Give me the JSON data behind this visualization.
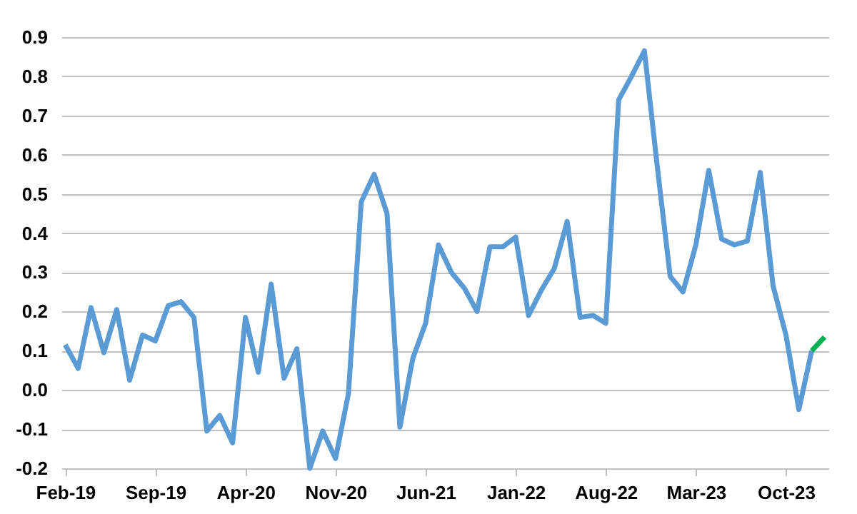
{
  "chart_data": {
    "type": "line",
    "categories": [
      "Feb-19",
      null,
      null,
      null,
      null,
      null,
      null,
      "Sep-19",
      null,
      null,
      null,
      null,
      null,
      null,
      "Apr-20",
      null,
      null,
      null,
      null,
      null,
      null,
      "Nov-20",
      null,
      null,
      null,
      null,
      null,
      null,
      "Jun-21",
      null,
      null,
      null,
      null,
      null,
      null,
      "Jan-22",
      null,
      null,
      null,
      null,
      null,
      null,
      "Aug-22",
      null,
      null,
      null,
      null,
      null,
      null,
      "Mar-23",
      null,
      null,
      null,
      null,
      null,
      null,
      "Oct-23",
      null,
      null,
      null
    ],
    "series": [
      {
        "color": "#5b9bd5",
        "values": [
          0.115,
          0.055,
          0.21,
          0.095,
          0.205,
          0.025,
          0.14,
          0.125,
          0.215,
          0.225,
          0.185,
          -0.105,
          -0.065,
          -0.135,
          0.185,
          0.045,
          0.27,
          0.03,
          0.105,
          -0.2,
          -0.105,
          -0.175,
          -0.01,
          0.48,
          0.55,
          0.45,
          -0.095,
          0.08,
          0.17,
          0.37,
          0.3,
          0.26,
          0.2,
          0.365,
          0.365,
          0.39,
          0.19,
          0.255,
          0.31,
          0.43,
          0.185,
          0.19,
          0.17,
          0.74,
          0.8,
          0.865,
          0.57,
          0.29,
          0.25,
          0.37,
          0.56,
          0.385,
          0.37,
          0.38,
          0.555,
          0.265,
          0.14,
          -0.05,
          0.1,
          null
        ]
      },
      {
        "color": "#00b050",
        "values": [
          null,
          null,
          null,
          null,
          null,
          null,
          null,
          null,
          null,
          null,
          null,
          null,
          null,
          null,
          null,
          null,
          null,
          null,
          null,
          null,
          null,
          null,
          null,
          null,
          null,
          null,
          null,
          null,
          null,
          null,
          null,
          null,
          null,
          null,
          null,
          null,
          null,
          null,
          null,
          null,
          null,
          null,
          null,
          null,
          null,
          null,
          null,
          null,
          null,
          null,
          null,
          null,
          null,
          null,
          null,
          null,
          null,
          null,
          0.1,
          0.135
        ]
      }
    ],
    "ylim": [
      -0.2,
      0.9
    ],
    "yticks": [
      -0.2,
      -0.1,
      {
        "value": 0,
        "label": "0.0"
      },
      0.1,
      0.2,
      0.3,
      0.4,
      0.5,
      0.6,
      0.7,
      0.8,
      0.9
    ],
    "grid": "y",
    "marker": "none",
    "line_style": "solid"
  }
}
